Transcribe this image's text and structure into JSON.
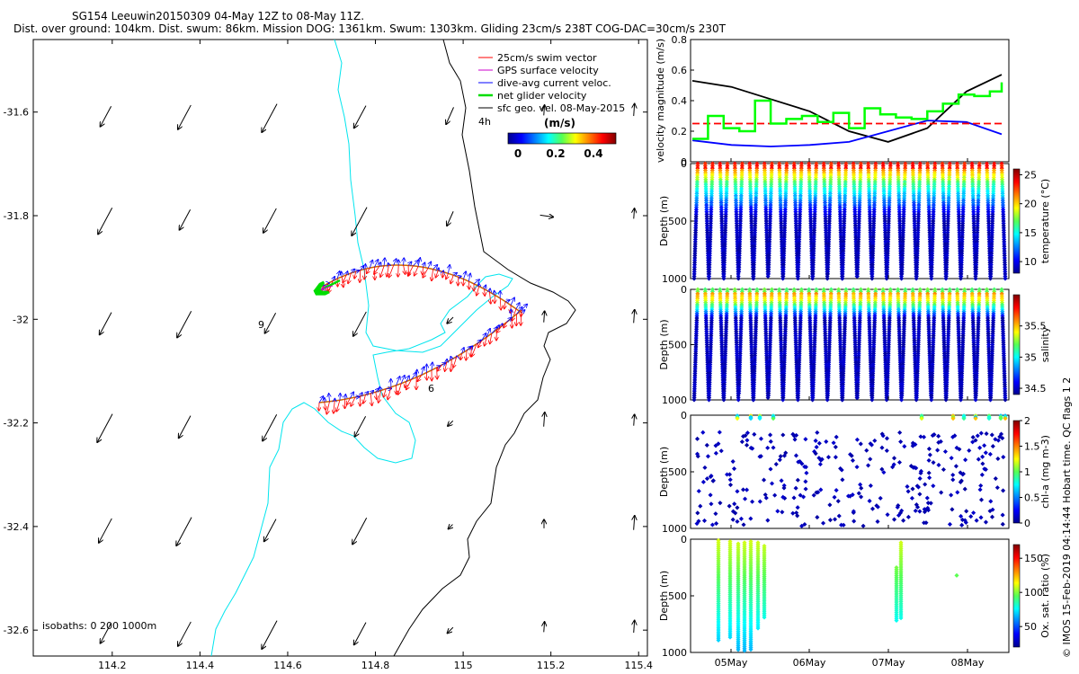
{
  "header": {
    "line1": "SG154 Leeuwin20150309 04-May 12Z to 08-May 11Z.",
    "line2": "Dist. over ground: 104km. Dist. swum: 86km. Mission DOG: 1361km. Swum: 1303km. Gliding 23cm/s 238T COG-DAC=30cm/s 230T"
  },
  "map": {
    "xlim": [
      114.02,
      115.42
    ],
    "ylim": [
      -32.65,
      -31.46
    ],
    "xticks": [
      "114.2",
      "114.4",
      "114.6",
      "114.8",
      "115",
      "115.2",
      "115.4"
    ],
    "yticks": [
      "-31.6",
      "-31.8",
      "-32",
      "-32.2",
      "-32.4",
      "-32.6"
    ],
    "isobath_label": "isobaths: 0   200  1000m",
    "label_4h": "4h",
    "label_9": "9",
    "label_6": "6",
    "legend": [
      {
        "label": "25cm/s swim vector",
        "color": "#ff0000"
      },
      {
        "label": "GPS surface velocity",
        "color": "#cc00cc"
      },
      {
        "label": "dive-avg current veloc.",
        "color": "#0000ff"
      },
      {
        "label": "net glider velocity",
        "color": "#00dd00"
      },
      {
        "label": "sfc geo. vel. 08-May-2015",
        "color": "#000000"
      }
    ],
    "colorbar": {
      "title": "(m/s)",
      "ticks": [
        "0",
        "0.2",
        "0.4"
      ],
      "range": [
        0,
        0.5
      ]
    }
  },
  "chart_data": [
    {
      "type": "line",
      "title": "",
      "ylabel": "velocity magnitude (m/s)",
      "ylim": [
        0,
        0.8
      ],
      "yticks": [
        "0",
        "0.2",
        "0.4",
        "0.6",
        "0.8"
      ],
      "x_unit": "days from 04-May 12Z",
      "series": [
        {
          "color": "#000000",
          "x": [
            0,
            0.5,
            1,
            1.5,
            2,
            2.5,
            3,
            3.5,
            3.95
          ],
          "values": [
            0.53,
            0.49,
            0.41,
            0.33,
            0.2,
            0.13,
            0.22,
            0.46,
            0.57
          ]
        },
        {
          "color": "#0000ff",
          "x": [
            0,
            0.5,
            1,
            1.5,
            2,
            2.5,
            3,
            3.5,
            3.95
          ],
          "values": [
            0.14,
            0.11,
            0.1,
            0.11,
            0.13,
            0.2,
            0.27,
            0.26,
            0.18
          ]
        },
        {
          "color": "#ff0000",
          "x": [
            0,
            3.95
          ],
          "values": [
            0.25,
            0.25
          ]
        },
        {
          "color": "#00ff00",
          "x": [
            0,
            0.2,
            0.4,
            0.6,
            0.8,
            1.0,
            1.2,
            1.4,
            1.6,
            1.8,
            2.0,
            2.2,
            2.4,
            2.6,
            2.8,
            3.0,
            3.2,
            3.4,
            3.6,
            3.8,
            3.95
          ],
          "values": [
            0.15,
            0.3,
            0.22,
            0.2,
            0.4,
            0.25,
            0.28,
            0.3,
            0.26,
            0.32,
            0.22,
            0.35,
            0.31,
            0.29,
            0.28,
            0.33,
            0.38,
            0.44,
            0.43,
            0.46,
            0.52
          ]
        }
      ]
    },
    {
      "type": "scatter",
      "ylabel": "Depth (m)",
      "colorbar_label": "temperature (°C)",
      "cticks": [
        "25",
        "20",
        "15",
        "10"
      ],
      "crange": [
        8,
        26
      ],
      "ylim": [
        0,
        1000
      ],
      "yticks": [
        "0",
        "500",
        "1000"
      ],
      "dive_max_depths": [
        1000,
        995,
        1000,
        980,
        1000,
        1000,
        950,
        1000,
        1000,
        990,
        960,
        1000,
        980,
        990,
        1000,
        1000,
        980,
        1000,
        970,
        1000,
        1000,
        980,
        990,
        960,
        1000,
        1000,
        980,
        1000,
        960,
        1000,
        990,
        970,
        1000,
        1000,
        980,
        1000,
        990,
        1000,
        960,
        1000,
        980,
        1000
      ]
    },
    {
      "type": "scatter",
      "ylabel": "Depth (m)",
      "colorbar_label": "salinity",
      "cticks": [
        "35.5",
        "35",
        "34.5"
      ],
      "crange": [
        34.4,
        36.0
      ],
      "ylim": [
        0,
        1000
      ],
      "yticks": [
        "0",
        "500",
        "1000"
      ]
    },
    {
      "type": "scatter",
      "ylabel": "Depth (m)",
      "colorbar_label": "chl-a (mg m-3)",
      "cticks": [
        "2",
        "1.5",
        "1",
        "0.5",
        "0"
      ],
      "crange": [
        0,
        2
      ],
      "ylim": [
        0,
        1000
      ],
      "yticks": [
        "0",
        "500",
        "1000"
      ]
    },
    {
      "type": "scatter",
      "ylabel": "Depth (m)",
      "colorbar_label": "Ox. sat. ratio (%)",
      "cticks": [
        "150",
        "100",
        "50"
      ],
      "crange": [
        20,
        170
      ],
      "ylim": [
        0,
        1000
      ],
      "yticks": [
        "0",
        "500",
        "1000"
      ],
      "xticks": [
        "05May",
        "06May",
        "07May",
        "08May"
      ]
    }
  ],
  "credit": "© IMOS 15-Feb-2019 04:14:44 Hobart time. QC flags 1  2"
}
